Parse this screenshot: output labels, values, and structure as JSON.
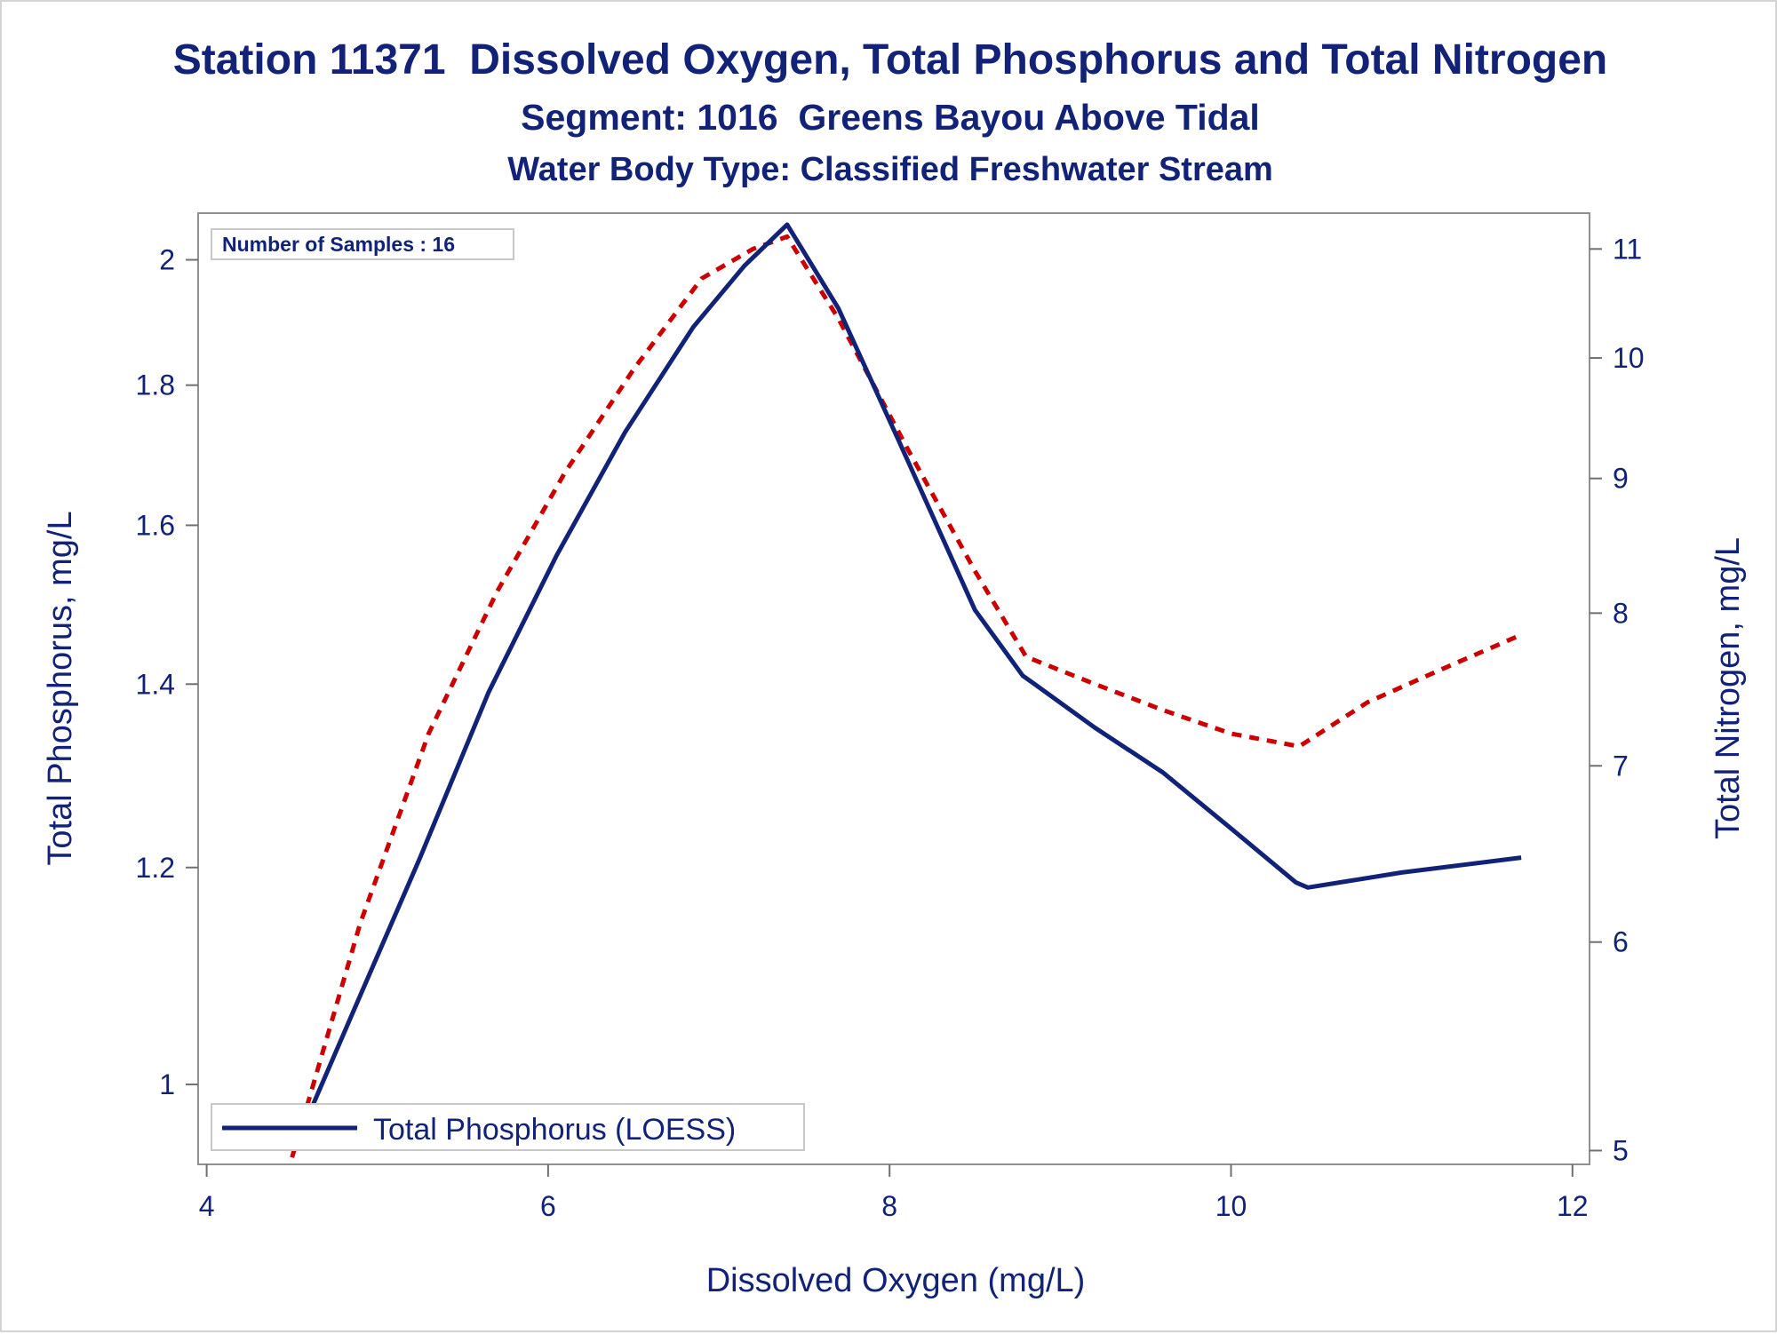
{
  "chart_data": {
    "type": "line",
    "title": "Station 11371  Dissolved Oxygen, Total Phosphorus and Total Nitrogen",
    "subtitle": "Segment: 1016  Greens Bayou Above Tidal",
    "subtitle2": "Water Body Type: Classified Freshwater Stream",
    "xlabel": "Dissolved Oxygen (mg/L)",
    "ylabel_left": "Total Phosphorus, mg/L",
    "ylabel_right": "Total Nitrogen, mg/L",
    "xlim": [
      3.95,
      12.1
    ],
    "xticks": [
      "4",
      "6",
      "8",
      "10",
      "12"
    ],
    "xtick_values": [
      4,
      6,
      8,
      10,
      12
    ],
    "y_left_scale": "log",
    "ylim_left": [
      0.935,
      2.08
    ],
    "yticks_left": [
      "1",
      "1.2",
      "1.4",
      "1.6",
      "1.8",
      "2"
    ],
    "ytick_left_values": [
      1.0,
      1.2,
      1.4,
      1.6,
      1.8,
      2.0
    ],
    "y_right_scale": "log",
    "ylim_right": [
      4.94,
      11.35
    ],
    "yticks_right": [
      "5",
      "6",
      "7",
      "8",
      "9",
      "10",
      "11"
    ],
    "ytick_right_values": [
      5,
      6,
      7,
      8,
      9,
      10,
      11
    ],
    "annotation": "Number of Samples : 16",
    "legend": {
      "position": "bottom-left",
      "entries": [
        "Total Phosphorus (LOESS)"
      ]
    },
    "series": [
      {
        "name": "Total Phosphorus (LOESS)",
        "axis": "left",
        "color": "#112277",
        "style": "solid",
        "x": [
          4.52,
          4.85,
          5.25,
          5.65,
          6.05,
          6.45,
          6.85,
          7.15,
          7.4,
          7.7,
          8.05,
          8.5,
          8.78,
          8.85,
          9.2,
          9.6,
          10.0,
          10.38,
          10.45,
          11.0,
          11.7
        ],
        "y": [
          0.95,
          1.06,
          1.21,
          1.39,
          1.56,
          1.73,
          1.89,
          1.99,
          2.06,
          1.92,
          1.72,
          1.49,
          1.41,
          1.4,
          1.35,
          1.3,
          1.24,
          1.185,
          1.18,
          1.195,
          1.21
        ]
      },
      {
        "axis": "right",
        "color": "#cc0000",
        "style": "dashed",
        "x": [
          4.5,
          4.9,
          5.3,
          5.7,
          6.1,
          6.5,
          6.9,
          7.2,
          7.4,
          7.7,
          8.1,
          8.5,
          8.8,
          9.2,
          9.6,
          10.0,
          10.4,
          10.8,
          11.2,
          11.7
        ],
        "y": [
          4.97,
          6.1,
          7.2,
          8.15,
          9.05,
          9.9,
          10.72,
          11.0,
          11.12,
          10.35,
          9.25,
          8.3,
          7.7,
          7.52,
          7.35,
          7.2,
          7.12,
          7.4,
          7.6,
          7.85
        ]
      }
    ]
  }
}
